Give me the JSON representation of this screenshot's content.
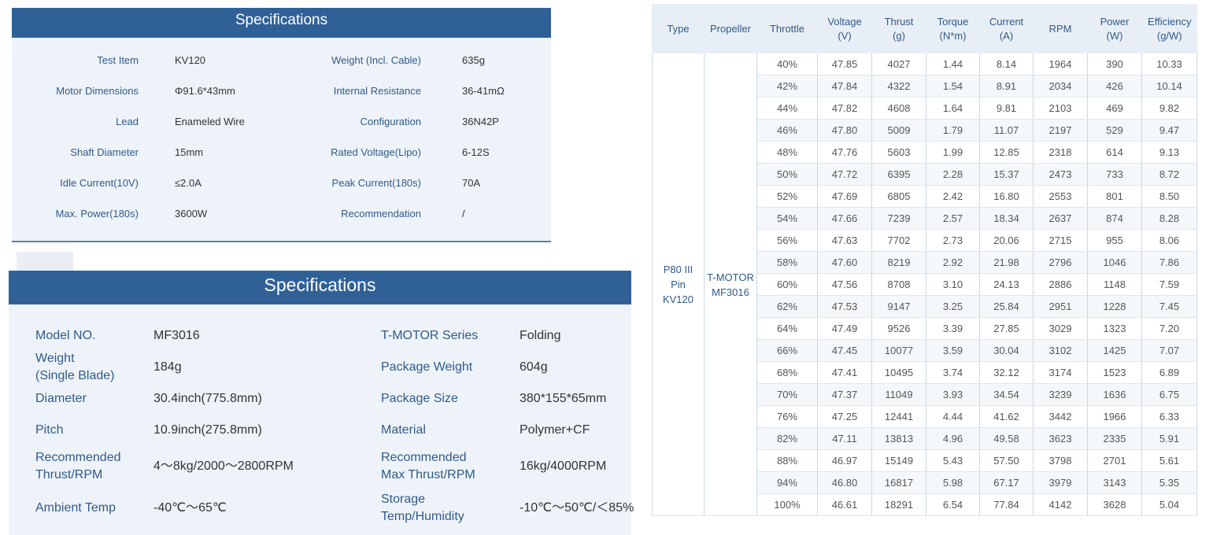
{
  "motor_specs": {
    "title": "Specifications",
    "rows": [
      {
        "label": "Test Item",
        "value": "KV120",
        "label2": "Weight (Incl. Cable)",
        "value2": "635g"
      },
      {
        "label": "Motor Dimensions",
        "value": "Φ91.6*43mm",
        "label2": "Internal Resistance",
        "value2": "36-41mΩ"
      },
      {
        "label": "Lead",
        "value": "Enameled Wire",
        "label2": "Configuration",
        "value2": "36N42P"
      },
      {
        "label": "Shaft Diameter",
        "value": "15mm",
        "label2": "Rated Voltage(Lipo)",
        "value2": "6-12S"
      },
      {
        "label": "Idle Current(10V)",
        "value": "≤2.0A",
        "label2": "Peak Current(180s)",
        "value2": "70A"
      },
      {
        "label": "Max. Power(180s)",
        "value": "3600W",
        "label2": "Recommendation",
        "value2": "/"
      }
    ]
  },
  "prop_specs": {
    "title": "Specifications",
    "rows": [
      {
        "label": "Model NO.",
        "value": "MF3016",
        "label2": "T-MOTOR Series",
        "value2": "Folding"
      },
      {
        "label": "Weight\n(Single Blade)",
        "value": "184g",
        "label2": "Package Weight",
        "value2": "604g"
      },
      {
        "label": "Diameter",
        "value": "30.4inch(775.8mm)",
        "label2": "Package Size",
        "value2": "380*155*65mm"
      },
      {
        "label": "Pitch",
        "value": "10.9inch(275.8mm)",
        "label2": "Material",
        "value2": "Polymer+CF"
      },
      {
        "label": "Recommended\nThrust/RPM",
        "value": "4～8kg/2000～2800RPM",
        "label2": "Recommended\nMax Thrust/RPM",
        "value2": "16kg/4000RPM"
      },
      {
        "label": "Ambient Temp",
        "value": "-40℃～65℃",
        "label2": "Storage\nTemp/Humidity",
        "value2": "-10℃～50℃/＜85%"
      }
    ]
  },
  "performance_table": {
    "headers": [
      "Type",
      "Propeller",
      "Throttle",
      "Voltage\n(V)",
      "Thrust\n(g)",
      "Torque\n(N*m)",
      "Current\n(A)",
      "RPM",
      "Power\n(W)",
      "Efficiency\n(g/W)"
    ],
    "type": "P80 III\nPin\nKV120",
    "propeller": "T-MOTOR\nMF3016",
    "rows": [
      [
        "40%",
        "47.85",
        "4027",
        "1.44",
        "8.14",
        "1964",
        "390",
        "10.33"
      ],
      [
        "42%",
        "47.84",
        "4322",
        "1.54",
        "8.91",
        "2034",
        "426",
        "10.14"
      ],
      [
        "44%",
        "47.82",
        "4608",
        "1.64",
        "9.81",
        "2103",
        "469",
        "9.82"
      ],
      [
        "46%",
        "47.80",
        "5009",
        "1.79",
        "11.07",
        "2197",
        "529",
        "9.47"
      ],
      [
        "48%",
        "47.76",
        "5603",
        "1.99",
        "12.85",
        "2318",
        "614",
        "9.13"
      ],
      [
        "50%",
        "47.72",
        "6395",
        "2.28",
        "15.37",
        "2473",
        "733",
        "8.72"
      ],
      [
        "52%",
        "47.69",
        "6805",
        "2.42",
        "16.80",
        "2553",
        "801",
        "8.50"
      ],
      [
        "54%",
        "47.66",
        "7239",
        "2.57",
        "18.34",
        "2637",
        "874",
        "8.28"
      ],
      [
        "56%",
        "47.63",
        "7702",
        "2.73",
        "20.06",
        "2715",
        "955",
        "8.06"
      ],
      [
        "58%",
        "47.60",
        "8219",
        "2.92",
        "21.98",
        "2796",
        "1046",
        "7.86"
      ],
      [
        "60%",
        "47.56",
        "8708",
        "3.10",
        "24.13",
        "2886",
        "1148",
        "7.59"
      ],
      [
        "62%",
        "47.53",
        "9147",
        "3.25",
        "25.84",
        "2951",
        "1228",
        "7.45"
      ],
      [
        "64%",
        "47.49",
        "9526",
        "3.39",
        "27.85",
        "3029",
        "1323",
        "7.20"
      ],
      [
        "66%",
        "47.45",
        "10077",
        "3.59",
        "30.04",
        "3102",
        "1425",
        "7.07"
      ],
      [
        "68%",
        "47.41",
        "10495",
        "3.74",
        "32.12",
        "3174",
        "1523",
        "6.89"
      ],
      [
        "70%",
        "47.37",
        "11049",
        "3.93",
        "34.54",
        "3239",
        "1636",
        "6.75"
      ],
      [
        "76%",
        "47.25",
        "12441",
        "4.44",
        "41.62",
        "3442",
        "1966",
        "6.33"
      ],
      [
        "82%",
        "47.11",
        "13813",
        "4.96",
        "49.58",
        "3623",
        "2335",
        "5.91"
      ],
      [
        "88%",
        "46.97",
        "15149",
        "5.43",
        "57.50",
        "3798",
        "2701",
        "5.61"
      ],
      [
        "94%",
        "46.80",
        "16817",
        "5.98",
        "67.17",
        "3979",
        "3143",
        "5.35"
      ],
      [
        "100%",
        "46.61",
        "18291",
        "6.54",
        "77.84",
        "4142",
        "3628",
        "5.04"
      ]
    ]
  }
}
